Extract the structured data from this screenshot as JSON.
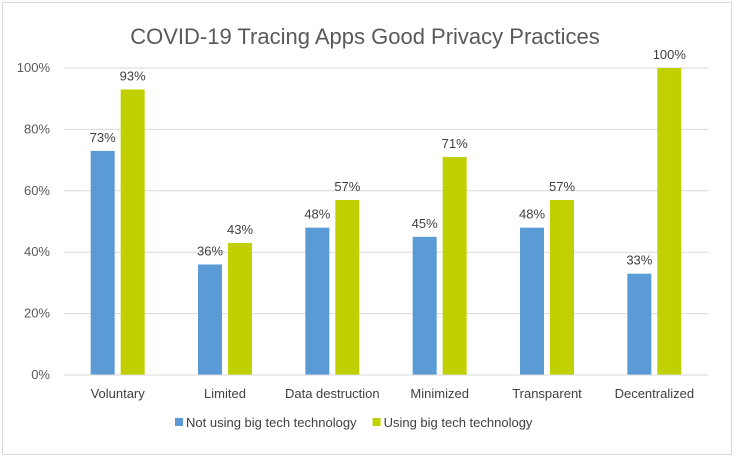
{
  "chart_data": {
    "type": "bar",
    "title": "COVID-19 Tracing Apps Good Privacy Practices",
    "xlabel": "",
    "ylabel": "",
    "categories": [
      "Voluntary",
      "Limited",
      "Data destruction",
      "Minimized",
      "Transparent",
      "Decentralized"
    ],
    "series": [
      {
        "name": "Not using big tech technology",
        "color": "#5b9bd5",
        "values": [
          73,
          36,
          48,
          45,
          48,
          33
        ],
        "labels": [
          "73%",
          "36%",
          "48%",
          "45%",
          "48%",
          "33%"
        ]
      },
      {
        "name": "Using big tech technology",
        "color": "#c0d000",
        "values": [
          93,
          43,
          57,
          71,
          57,
          100
        ],
        "labels": [
          "93%",
          "43%",
          "57%",
          "71%",
          "57%",
          "100%"
        ]
      }
    ],
    "ylim": [
      0,
      100
    ],
    "yticks": [
      0,
      20,
      40,
      60,
      80,
      100
    ],
    "ytick_labels": [
      "0%",
      "20%",
      "40%",
      "60%",
      "80%",
      "100%"
    ],
    "grid": true,
    "legend_position": "bottom"
  }
}
